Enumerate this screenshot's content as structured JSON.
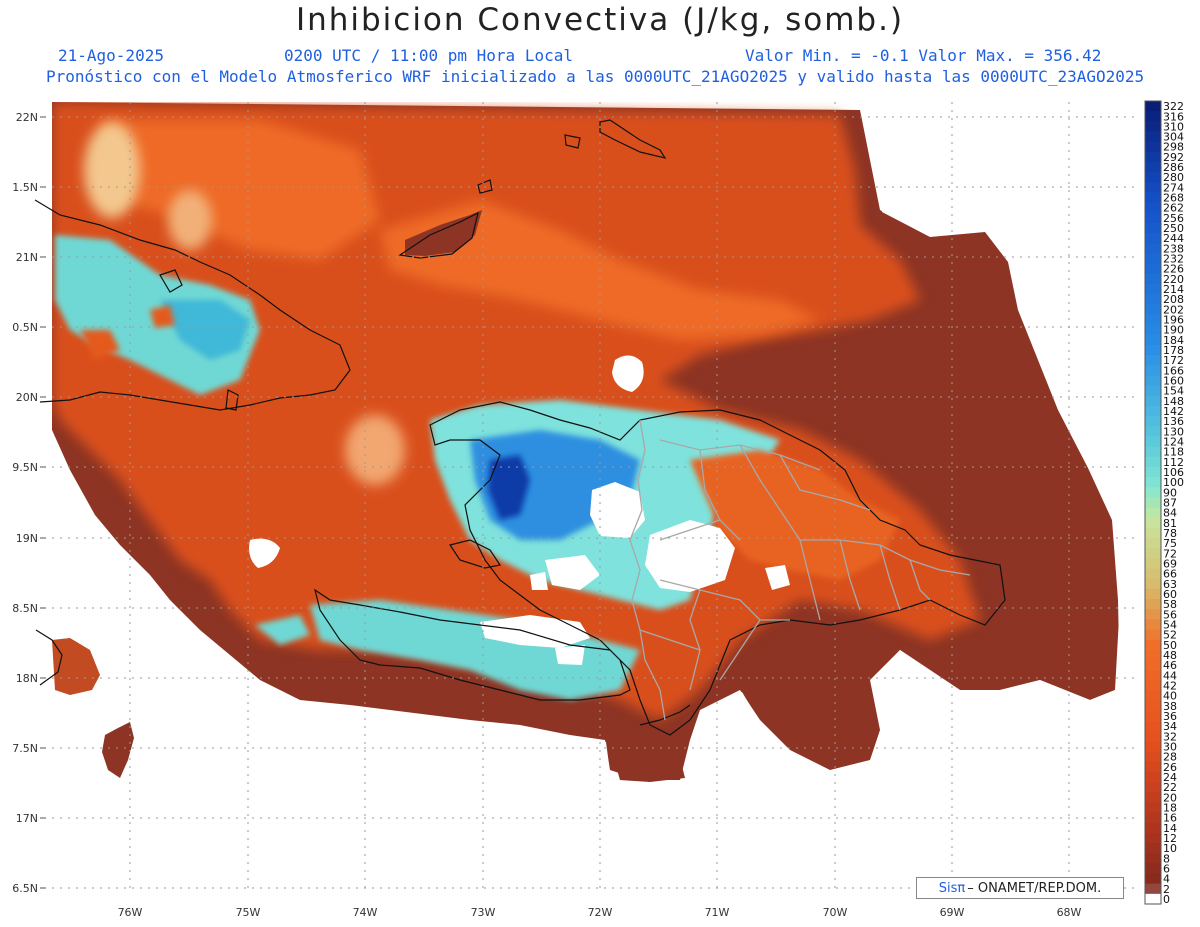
{
  "header": {
    "title": "Inhibicion Convectiva (J/kg, somb.)",
    "date": "21-Ago-2025",
    "time": "0200 UTC / 11:00 pm Hora Local",
    "minmax": "Valor Min. = -0.1  Valor Max. = 356.42",
    "model": "Pronóstico con el Modelo Atmosferico WRF inicializado a las 0000UTC_21AGO2025 y valido hasta las  0000UTC_23AGO2025"
  },
  "axes": {
    "lat_labels": [
      "22N",
      "1.5N",
      "21N",
      "0.5N",
      "20N",
      "9.5N",
      "19N",
      "8.5N",
      "18N",
      "7.5N",
      "17N",
      "6.5N"
    ],
    "lon_labels": [
      "76W",
      "75W",
      "74W",
      "73W",
      "72W",
      "71W",
      "70W",
      "69W",
      "68W"
    ]
  },
  "colorbar": {
    "labels": [
      "322",
      "316",
      "310",
      "304",
      "298",
      "292",
      "286",
      "280",
      "274",
      "268",
      "262",
      "256",
      "250",
      "244",
      "238",
      "232",
      "226",
      "220",
      "214",
      "208",
      "202",
      "196",
      "190",
      "184",
      "178",
      "172",
      "166",
      "160",
      "154",
      "148",
      "142",
      "136",
      "130",
      "124",
      "118",
      "112",
      "106",
      "100",
      "90",
      "87",
      "84",
      "81",
      "78",
      "75",
      "72",
      "69",
      "66",
      "63",
      "60",
      "58",
      "56",
      "54",
      "52",
      "50",
      "48",
      "46",
      "44",
      "42",
      "40",
      "38",
      "36",
      "34",
      "32",
      "30",
      "28",
      "26",
      "24",
      "22",
      "20",
      "18",
      "16",
      "14",
      "12",
      "10",
      "8",
      "6",
      "4",
      "2",
      "0"
    ]
  },
  "credit": {
    "brand": "Sisπ",
    "text": "– ONAMET/REP.DOM."
  },
  "colors": {
    "low": "#8b2f22",
    "mid": "#e45a1a",
    "high": "#6ee0e0",
    "max": "#0a2e9a"
  }
}
